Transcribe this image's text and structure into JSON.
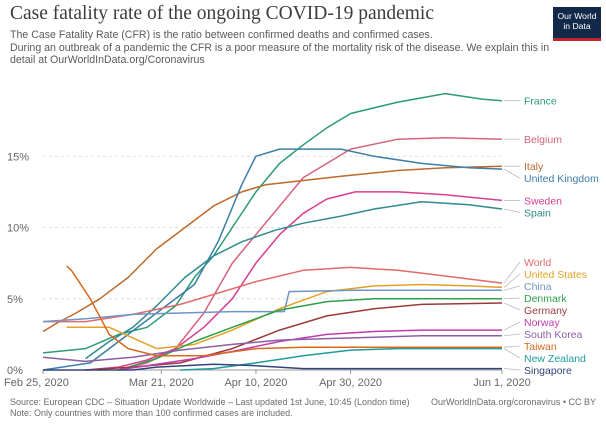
{
  "header": {
    "title": "Case fatality rate of the ongoing COVID-19 pandemic",
    "subtitle_lines": [
      "The Case Fatality Rate (CFR) is the ratio between confirmed deaths and confirmed cases.",
      " During an outbreak of a pandemic the CFR is a poor measure of the mortality risk of the disease. We explain this in",
      "detail at OurWorldInData.org/Coronavirus"
    ]
  },
  "logo": {
    "line1": "Our World",
    "line2": "in Data"
  },
  "footer": {
    "source": "Source: European CDC – Situation Update Worldwide – Last updated 1st June, 10:45 (London time)",
    "note": "Note: Only countries with more than 100 confirmed cases are included.",
    "credit": "OurWorldInData.org/coronavirus • CC BY"
  },
  "chart_data": {
    "type": "line",
    "x_domain": [
      "2020-02-25",
      "2020-06-01"
    ],
    "x_ticks": [
      {
        "date": "2020-02-25",
        "label": "Feb 25, 2020"
      },
      {
        "date": "2020-03-21",
        "label": "Mar 21, 2020"
      },
      {
        "date": "2020-04-10",
        "label": "Apr 10, 2020"
      },
      {
        "date": "2020-04-30",
        "label": "Apr 30, 2020"
      },
      {
        "date": "2020-06-01",
        "label": "Jun 1, 2020"
      }
    ],
    "ylim": [
      0,
      20
    ],
    "y_ticks": [
      {
        "value": 0,
        "label": "0%"
      },
      {
        "value": 5,
        "label": "5%"
      },
      {
        "value": 10,
        "label": "10%"
      },
      {
        "value": 15,
        "label": "15%"
      }
    ],
    "grid": "horizontal dashed",
    "series": [
      {
        "name": "France",
        "color": "#2b9b78",
        "x": [
          "2020-02-25",
          "2020-03-05",
          "2020-03-12",
          "2020-03-18",
          "2020-03-24",
          "2020-03-28",
          "2020-04-01",
          "2020-04-05",
          "2020-04-10",
          "2020-04-15",
          "2020-04-20",
          "2020-04-25",
          "2020-04-30",
          "2020-05-10",
          "2020-05-20",
          "2020-05-28",
          "2020-06-01"
        ],
        "y": [
          1.2,
          1.5,
          2.5,
          3.0,
          4.5,
          6.5,
          8.0,
          10.0,
          12.5,
          14.5,
          15.8,
          17.0,
          18.0,
          18.8,
          19.4,
          19.0,
          18.9
        ]
      },
      {
        "name": "Belgium",
        "color": "#d5637f",
        "x": [
          "2020-03-12",
          "2020-03-18",
          "2020-03-24",
          "2020-03-30",
          "2020-04-05",
          "2020-04-10",
          "2020-04-15",
          "2020-04-20",
          "2020-04-25",
          "2020-04-30",
          "2020-05-10",
          "2020-05-20",
          "2020-06-01"
        ],
        "y": [
          0.0,
          0.5,
          1.5,
          4.0,
          7.5,
          9.5,
          11.5,
          13.5,
          14.5,
          15.5,
          16.2,
          16.3,
          16.2
        ]
      },
      {
        "name": "Italy",
        "color": "#bd6a2c",
        "x": [
          "2020-02-25",
          "2020-02-28",
          "2020-03-03",
          "2020-03-08",
          "2020-03-14",
          "2020-03-20",
          "2020-03-26",
          "2020-04-01",
          "2020-04-07",
          "2020-04-12",
          "2020-04-20",
          "2020-04-28",
          "2020-05-10",
          "2020-05-20",
          "2020-06-01"
        ],
        "y": [
          2.7,
          3.3,
          4.0,
          5.0,
          6.5,
          8.5,
          10.0,
          11.5,
          12.5,
          13.0,
          13.3,
          13.6,
          14.0,
          14.2,
          14.3
        ]
      },
      {
        "name": "United Kingdom",
        "color": "#3c7ea7",
        "x": [
          "2020-02-25",
          "2020-03-06",
          "2020-03-12",
          "2020-03-18",
          "2020-03-22",
          "2020-03-28",
          "2020-04-02",
          "2020-04-07",
          "2020-04-10",
          "2020-04-15",
          "2020-04-22",
          "2020-04-28",
          "2020-05-05",
          "2020-05-15",
          "2020-05-25",
          "2020-06-01"
        ],
        "y": [
          0.0,
          0.5,
          2.0,
          3.5,
          4.5,
          6.0,
          9.0,
          13.0,
          15.0,
          15.5,
          15.5,
          15.5,
          15.0,
          14.5,
          14.2,
          14.1
        ]
      },
      {
        "name": "Sweden",
        "color": "#d93d8f",
        "x": [
          "2020-03-05",
          "2020-03-12",
          "2020-03-18",
          "2020-03-24",
          "2020-03-30",
          "2020-04-05",
          "2020-04-10",
          "2020-04-15",
          "2020-04-20",
          "2020-04-25",
          "2020-05-01",
          "2020-05-10",
          "2020-05-20",
          "2020-06-01"
        ],
        "y": [
          0.0,
          0.2,
          0.7,
          1.5,
          3.0,
          5.0,
          7.5,
          9.5,
          11.0,
          12.0,
          12.5,
          12.5,
          12.3,
          11.9
        ]
      },
      {
        "name": "Spain",
        "color": "#318a8d",
        "x": [
          "2020-03-05",
          "2020-03-10",
          "2020-03-15",
          "2020-03-20",
          "2020-03-26",
          "2020-04-01",
          "2020-04-07",
          "2020-04-14",
          "2020-04-20",
          "2020-04-28",
          "2020-05-05",
          "2020-05-15",
          "2020-05-25",
          "2020-06-01"
        ],
        "y": [
          0.8,
          2.0,
          3.0,
          4.5,
          6.5,
          8.0,
          9.0,
          9.8,
          10.3,
          10.8,
          11.3,
          11.8,
          11.6,
          11.3
        ]
      },
      {
        "name": "World",
        "color": "#e26a6a",
        "x": [
          "2020-02-25",
          "2020-03-05",
          "2020-03-15",
          "2020-03-25",
          "2020-04-01",
          "2020-04-10",
          "2020-04-20",
          "2020-04-30",
          "2020-05-10",
          "2020-05-20",
          "2020-06-01"
        ],
        "y": [
          3.4,
          3.4,
          3.9,
          4.6,
          5.3,
          6.2,
          7.0,
          7.2,
          7.0,
          6.6,
          6.1
        ]
      },
      {
        "name": "United States",
        "color": "#e4a125",
        "x": [
          "2020-03-01",
          "2020-03-10",
          "2020-03-20",
          "2020-03-28",
          "2020-04-05",
          "2020-04-15",
          "2020-04-25",
          "2020-05-05",
          "2020-05-15",
          "2020-05-25",
          "2020-06-01"
        ],
        "y": [
          3.0,
          3.0,
          1.5,
          1.8,
          2.8,
          4.3,
          5.5,
          5.9,
          6.0,
          5.9,
          5.8
        ]
      },
      {
        "name": "China",
        "color": "#6e95c4",
        "x": [
          "2020-02-25",
          "2020-03-05",
          "2020-03-15",
          "2020-03-25",
          "2020-04-05",
          "2020-04-16",
          "2020-04-17",
          "2020-05-01",
          "2020-05-15",
          "2020-06-01"
        ],
        "y": [
          3.4,
          3.6,
          3.9,
          4.0,
          4.1,
          4.1,
          5.5,
          5.6,
          5.6,
          5.6
        ]
      },
      {
        "name": "Denmark",
        "color": "#2ea04a",
        "x": [
          "2020-03-12",
          "2020-03-20",
          "2020-03-28",
          "2020-04-05",
          "2020-04-15",
          "2020-04-25",
          "2020-05-05",
          "2020-05-15",
          "2020-06-01"
        ],
        "y": [
          0.0,
          0.8,
          2.0,
          3.0,
          4.2,
          4.8,
          5.0,
          5.0,
          5.0
        ]
      },
      {
        "name": "Germany",
        "color": "#9c3a3a",
        "x": [
          "2020-03-05",
          "2020-03-15",
          "2020-03-25",
          "2020-04-05",
          "2020-04-15",
          "2020-04-25",
          "2020-05-05",
          "2020-05-15",
          "2020-06-01"
        ],
        "y": [
          0.0,
          0.2,
          0.5,
          1.5,
          2.8,
          3.8,
          4.3,
          4.6,
          4.7
        ]
      },
      {
        "name": "Norway",
        "color": "#c13cb0",
        "x": [
          "2020-03-12",
          "2020-03-20",
          "2020-03-28",
          "2020-04-05",
          "2020-04-15",
          "2020-04-25",
          "2020-05-05",
          "2020-05-15",
          "2020-06-01"
        ],
        "y": [
          0.0,
          0.4,
          0.8,
          1.3,
          2.0,
          2.5,
          2.7,
          2.8,
          2.8
        ]
      },
      {
        "name": "South Korea",
        "color": "#8b5fa5",
        "x": [
          "2020-02-25",
          "2020-03-05",
          "2020-03-15",
          "2020-03-25",
          "2020-04-05",
          "2020-04-15",
          "2020-04-25",
          "2020-05-05",
          "2020-05-15",
          "2020-06-01"
        ],
        "y": [
          0.9,
          0.6,
          0.9,
          1.4,
          1.8,
          2.1,
          2.2,
          2.3,
          2.4,
          2.4
        ]
      },
      {
        "name": "New Zealand",
        "color": "#1f9b9b",
        "x": [
          "2020-03-25",
          "2020-04-01",
          "2020-04-10",
          "2020-04-20",
          "2020-04-30",
          "2020-05-10",
          "2020-05-20",
          "2020-06-01"
        ],
        "y": [
          0.0,
          0.1,
          0.5,
          1.0,
          1.4,
          1.5,
          1.5,
          1.5
        ]
      },
      {
        "name": "Taiwan",
        "color": "#d7691f",
        "x": [
          "2020-03-01",
          "2020-03-02",
          "2020-03-06",
          "2020-03-10",
          "2020-03-14",
          "2020-03-20",
          "2020-03-30",
          "2020-04-10",
          "2020-04-20",
          "2020-05-01",
          "2020-05-15",
          "2020-06-01"
        ],
        "y": [
          7.3,
          7.0,
          5.0,
          2.5,
          1.5,
          1.0,
          1.0,
          1.5,
          1.6,
          1.6,
          1.6,
          1.6
        ]
      },
      {
        "name": "Singapore",
        "color": "#32447a",
        "x": [
          "2020-02-25",
          "2020-03-15",
          "2020-03-20",
          "2020-04-01",
          "2020-04-10",
          "2020-04-20",
          "2020-05-01",
          "2020-05-15",
          "2020-06-01"
        ],
        "y": [
          0.0,
          0.0,
          0.2,
          0.4,
          0.3,
          0.1,
          0.1,
          0.1,
          0.1
        ]
      }
    ]
  }
}
